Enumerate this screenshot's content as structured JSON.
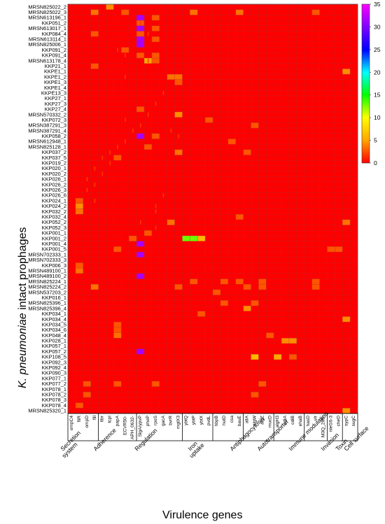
{
  "chart_data": {
    "type": "heatmap",
    "xlabel": "Virulence genes",
    "ylabel_italic": "K. pneumoniae",
    "ylabel_rest": " intact prophages",
    "colorbar": {
      "min": 0,
      "max": 35,
      "ticks": [
        0,
        5,
        10,
        15,
        20,
        25,
        30,
        35
      ],
      "colors": [
        "#ff0000",
        "#ffa500",
        "#ffff00",
        "#00ff00",
        "#00ffff",
        "#0000ff",
        "#ff00ff"
      ]
    },
    "rows": [
      "MRSN825022_2",
      "MRSN825022_3",
      "MRSN613196_1",
      "KKP051_2",
      "MRSN613017_1",
      "KKP084_4",
      "MRSN613114_1",
      "MRSN825006_1",
      "KKP091_2",
      "KKP091_4",
      "MRSN613178_4",
      "KKP21_1",
      "KKPE1_1",
      "KKPE1_2",
      "KKPE1_3",
      "KKPE1_4",
      "KKPE13_3",
      "KKP27_1",
      "KKP27_3",
      "KKP27_4",
      "MRSN570332_2",
      "KKP072_3",
      "MRSN387291_3",
      "MRSN387291_4",
      "KKP058_2",
      "MRSN612948_1",
      "MRSN825128_1",
      "KKP037_2",
      "KKP037_5",
      "KKP019_2",
      "KKP020_1",
      "KKP020_2",
      "KKP026_1",
      "KKP026_2",
      "KKP026_3",
      "KKP026_6",
      "KKP024_1",
      "KKP024_2",
      "KKP032_2",
      "KKP032_4",
      "KKP052_2",
      "KKP052_3",
      "KKP001_1",
      "KKP001_2",
      "KKP001_4",
      "KKP001_5",
      "MRSN702333_1",
      "MRSN702333_3",
      "KKP006_3",
      "MRSN489100_1",
      "MRSN489100_2",
      "MRSN825224_1",
      "MRSN825224_2",
      "MRSN537203_2",
      "KKP016_1",
      "MRSN825396_1",
      "MRSN825396_4",
      "KKP034_1",
      "KKP034_4",
      "KKP034_5",
      "KKP034_6",
      "KKP048_4",
      "KKP028_1",
      "KKP057_1",
      "KKP057_2",
      "KKP108_5",
      "KKP092_3",
      "KKP092_4",
      "KKP090_3",
      "KKP077_1",
      "KKP077_2",
      "KKP078_1",
      "KKP078_2",
      "KKP078_3",
      "KKP078_4",
      "MRSN825320_1"
    ],
    "columns": [
      "ompC4",
      "fliR",
      "ompD",
      "flil",
      "tlbr",
      "tcpI",
      "papA",
      "ECVR50-",
      "APH_0632-",
      "SlgA/ypvP",
      "phoP",
      "rpoS",
      "gacA",
      "bvrR",
      "mgtX3",
      "ybtQ",
      "ybtP",
      "ybtX",
      "pvdL",
      "hbpB",
      "hutD",
      "csa",
      "bauE",
      "allA",
      "algW",
      "algZ",
      "mucD",
      "algH3",
      "cdiA",
      "cdiB",
      "ehaB",
      "hasD",
      "vlr",
      "M3Q_285-",
      "nleG6-3",
      "cheD",
      "sypC",
      "sugC"
    ],
    "groups": [
      {
        "line1": "Secretion",
        "line2": "system"
      },
      {
        "line1": "Adherence",
        "line2": ""
      },
      {
        "line1": "Regulation",
        "line2": ""
      },
      {
        "line1": "Iron",
        "line2": "uptake"
      },
      {
        "line1": "Antiphagocytosis",
        "line2": ""
      },
      {
        "line1": "Autotransporter",
        "line2": ""
      },
      {
        "line1": "Immune modulation",
        "line2": ""
      },
      {
        "line1": "Invasion",
        "line2": ""
      },
      {
        "line1": "Toxin",
        "line2": ""
      },
      {
        "line1": "Cell surface",
        "line2": ""
      }
    ],
    "cells": [
      [
        0,
        5,
        5
      ],
      [
        1,
        3,
        4
      ],
      [
        1,
        7,
        3
      ],
      [
        1,
        16,
        4
      ],
      [
        1,
        22,
        4
      ],
      [
        1,
        32,
        3
      ],
      [
        2,
        9,
        33
      ],
      [
        2,
        11,
        3
      ],
      [
        3,
        9,
        3
      ],
      [
        4,
        9,
        33
      ],
      [
        4,
        11,
        3
      ],
      [
        5,
        3,
        3
      ],
      [
        5,
        9,
        3
      ],
      [
        6,
        9,
        33
      ],
      [
        6,
        11,
        3
      ],
      [
        7,
        9,
        33
      ],
      [
        8,
        7,
        3
      ],
      [
        9,
        9,
        3
      ],
      [
        9,
        11,
        3
      ],
      [
        10,
        10,
        6
      ],
      [
        10,
        11,
        3
      ],
      [
        11,
        3,
        3
      ],
      [
        12,
        36,
        5
      ],
      [
        13,
        13,
        4
      ],
      [
        13,
        14,
        4
      ],
      [
        14,
        14,
        3
      ],
      [
        19,
        9,
        3
      ],
      [
        20,
        14,
        5
      ],
      [
        21,
        18,
        3
      ],
      [
        22,
        24,
        3
      ],
      [
        24,
        9,
        33
      ],
      [
        24,
        11,
        3
      ],
      [
        25,
        21,
        3
      ],
      [
        26,
        10,
        3
      ],
      [
        27,
        14,
        4
      ],
      [
        27,
        23,
        3
      ],
      [
        28,
        6,
        3
      ],
      [
        36,
        1,
        3
      ],
      [
        37,
        1,
        5
      ],
      [
        38,
        1,
        4
      ],
      [
        39,
        22,
        3
      ],
      [
        40,
        13,
        4
      ],
      [
        40,
        36,
        4
      ],
      [
        42,
        10,
        3
      ],
      [
        43,
        8,
        3
      ],
      [
        43,
        15,
        15
      ],
      [
        43,
        16,
        15
      ],
      [
        43,
        17,
        7
      ],
      [
        44,
        9,
        33
      ],
      [
        45,
        6,
        3
      ],
      [
        45,
        34,
        3
      ],
      [
        45,
        35,
        3
      ],
      [
        46,
        9,
        33
      ],
      [
        48,
        1,
        3
      ],
      [
        49,
        1,
        4
      ],
      [
        50,
        9,
        33
      ],
      [
        51,
        16,
        3
      ],
      [
        51,
        20,
        3
      ],
      [
        51,
        22,
        3
      ],
      [
        51,
        25,
        3
      ],
      [
        51,
        32,
        3
      ],
      [
        52,
        3,
        4
      ],
      [
        52,
        14,
        3
      ],
      [
        52,
        23,
        3
      ],
      [
        52,
        25,
        3
      ],
      [
        52,
        32,
        3
      ],
      [
        53,
        19,
        3
      ],
      [
        55,
        20,
        3
      ],
      [
        55,
        24,
        3
      ],
      [
        56,
        23,
        5
      ],
      [
        57,
        17,
        3
      ],
      [
        58,
        36,
        5
      ],
      [
        59,
        6,
        3
      ],
      [
        60,
        6,
        3
      ],
      [
        61,
        6,
        4
      ],
      [
        61,
        26,
        3
      ],
      [
        62,
        28,
        5
      ],
      [
        62,
        29,
        5
      ],
      [
        64,
        9,
        33
      ],
      [
        65,
        24,
        7
      ],
      [
        65,
        27,
        6
      ],
      [
        65,
        29,
        3
      ],
      [
        70,
        2,
        3
      ],
      [
        70,
        6,
        3
      ],
      [
        70,
        11,
        3
      ],
      [
        70,
        25,
        3
      ],
      [
        72,
        2,
        3
      ],
      [
        72,
        24,
        3
      ],
      [
        74,
        1,
        3
      ],
      [
        75,
        36,
        5
      ]
    ],
    "tiny_marks": [
      [
        3,
        9,
        2
      ],
      [
        5,
        10,
        2
      ],
      [
        8,
        6,
        2
      ],
      [
        9,
        7,
        2
      ],
      [
        10,
        10,
        2
      ],
      [
        13,
        7,
        2
      ],
      [
        16,
        12,
        2
      ],
      [
        18,
        11,
        2
      ],
      [
        20,
        10,
        2
      ],
      [
        21,
        7,
        2
      ],
      [
        22,
        9,
        2
      ],
      [
        23,
        8,
        2
      ],
      [
        23,
        13,
        2
      ],
      [
        24,
        14,
        2
      ],
      [
        25,
        7,
        2
      ],
      [
        26,
        6,
        2
      ],
      [
        27,
        5,
        2
      ],
      [
        28,
        4,
        2
      ],
      [
        29,
        5,
        2
      ],
      [
        30,
        3,
        2
      ],
      [
        31,
        4,
        2
      ],
      [
        32,
        2,
        2
      ],
      [
        33,
        3,
        2
      ],
      [
        34,
        2,
        2
      ],
      [
        35,
        12,
        2
      ],
      [
        36,
        3,
        2
      ],
      [
        37,
        11,
        2
      ],
      [
        38,
        11,
        2
      ],
      [
        40,
        9,
        2
      ],
      [
        41,
        11,
        2
      ]
    ]
  }
}
